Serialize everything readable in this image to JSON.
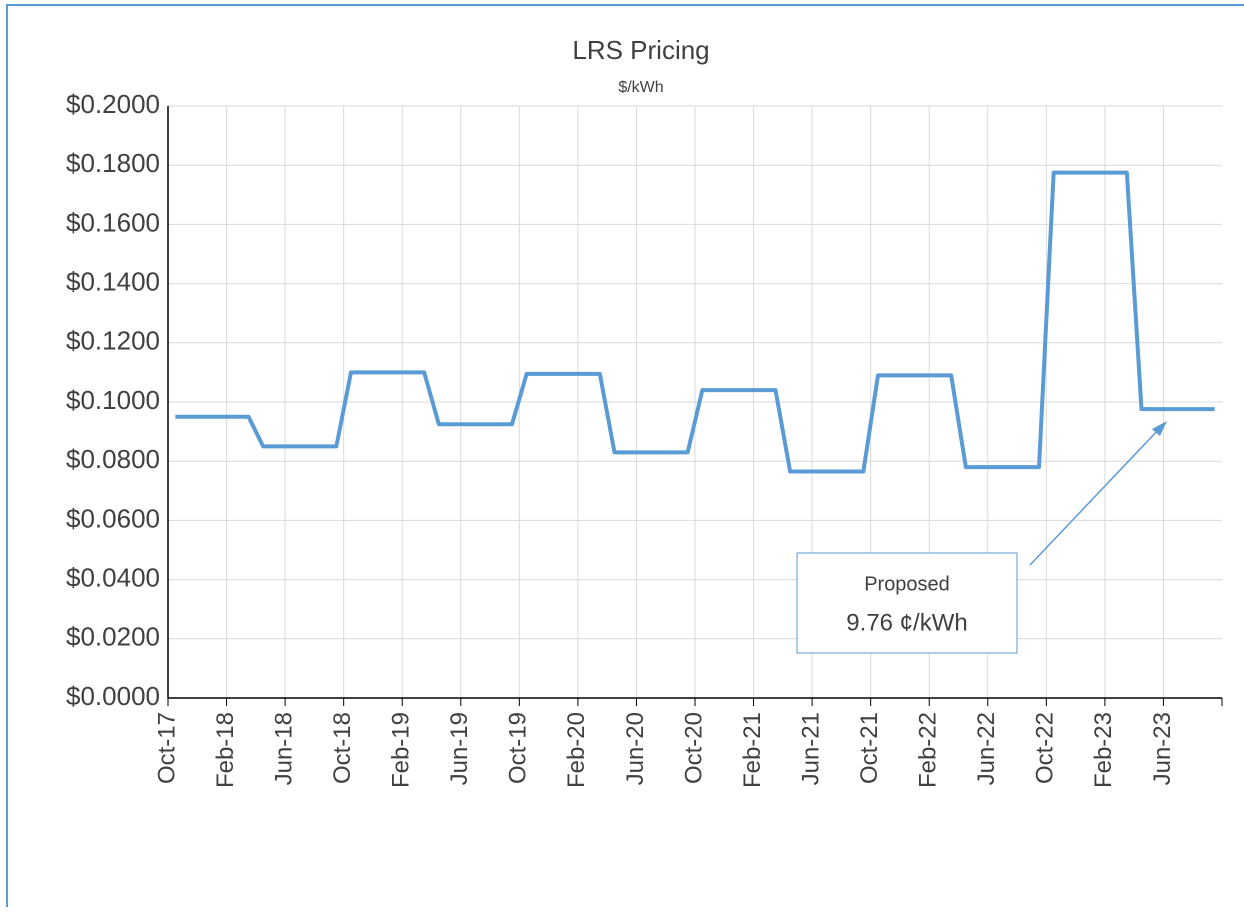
{
  "chart_data": {
    "type": "line",
    "title": "LRS Pricing",
    "subtitle": "$/kWh",
    "categories": [
      "Oct-17",
      null,
      null,
      null,
      "Feb-18",
      null,
      null,
      null,
      "Jun-18",
      null,
      null,
      null,
      "Oct-18",
      null,
      null,
      null,
      "Feb-19",
      null,
      null,
      null,
      "Jun-19",
      null,
      null,
      null,
      "Oct-19",
      null,
      null,
      null,
      "Feb-20",
      null,
      null,
      null,
      "Jun-20",
      null,
      null,
      null,
      "Oct-20",
      null,
      null,
      null,
      "Feb-21",
      null,
      null,
      null,
      "Jun-21",
      null,
      null,
      null,
      "Oct-21",
      null,
      null,
      null,
      "Feb-22",
      null,
      null,
      null,
      "Jun-22",
      null,
      null,
      null,
      "Oct-22",
      null,
      null,
      null,
      "Feb-23",
      null,
      null,
      null,
      "Jun-23",
      null,
      null,
      null
    ],
    "values": [
      0.095,
      0.095,
      0.095,
      0.095,
      0.095,
      0.095,
      0.085,
      0.085,
      0.085,
      0.085,
      0.085,
      0.085,
      0.11,
      0.11,
      0.11,
      0.11,
      0.11,
      0.11,
      0.0925,
      0.0925,
      0.0925,
      0.0925,
      0.0925,
      0.0925,
      0.1095,
      0.1095,
      0.1095,
      0.1095,
      0.1095,
      0.1095,
      0.083,
      0.083,
      0.083,
      0.083,
      0.083,
      0.083,
      0.104,
      0.104,
      0.104,
      0.104,
      0.104,
      0.104,
      0.0765,
      0.0765,
      0.0765,
      0.0765,
      0.0765,
      0.0765,
      0.109,
      0.109,
      0.109,
      0.109,
      0.109,
      0.109,
      0.078,
      0.078,
      0.078,
      0.078,
      0.078,
      0.078,
      0.1775,
      0.1775,
      0.1775,
      0.1775,
      0.1775,
      0.1775,
      0.0976,
      0.0976,
      0.0976,
      0.0976,
      0.0976,
      0.0976
    ],
    "color": "#5b9bd5",
    "ylim": [
      0,
      0.2
    ],
    "yticks": [
      {
        "value": 0,
        "label": "$0.0000"
      },
      {
        "value": 0.02,
        "label": "$0.0200"
      },
      {
        "value": 0.04,
        "label": "$0.0400"
      },
      {
        "value": 0.06,
        "label": "$0.0600"
      },
      {
        "value": 0.08,
        "label": "$0.0800"
      },
      {
        "value": 0.1,
        "label": "$0.1000"
      },
      {
        "value": 0.12,
        "label": "$0.1200"
      },
      {
        "value": 0.14,
        "label": "$0.1400"
      },
      {
        "value": 0.16,
        "label": "$0.1600"
      },
      {
        "value": 0.18,
        "label": "$0.1800"
      },
      {
        "value": 0.2,
        "label": "$0.2000"
      }
    ],
    "grid": true,
    "annotation": {
      "line1": "Proposed",
      "line2": "9.76 ¢/kWh"
    }
  }
}
